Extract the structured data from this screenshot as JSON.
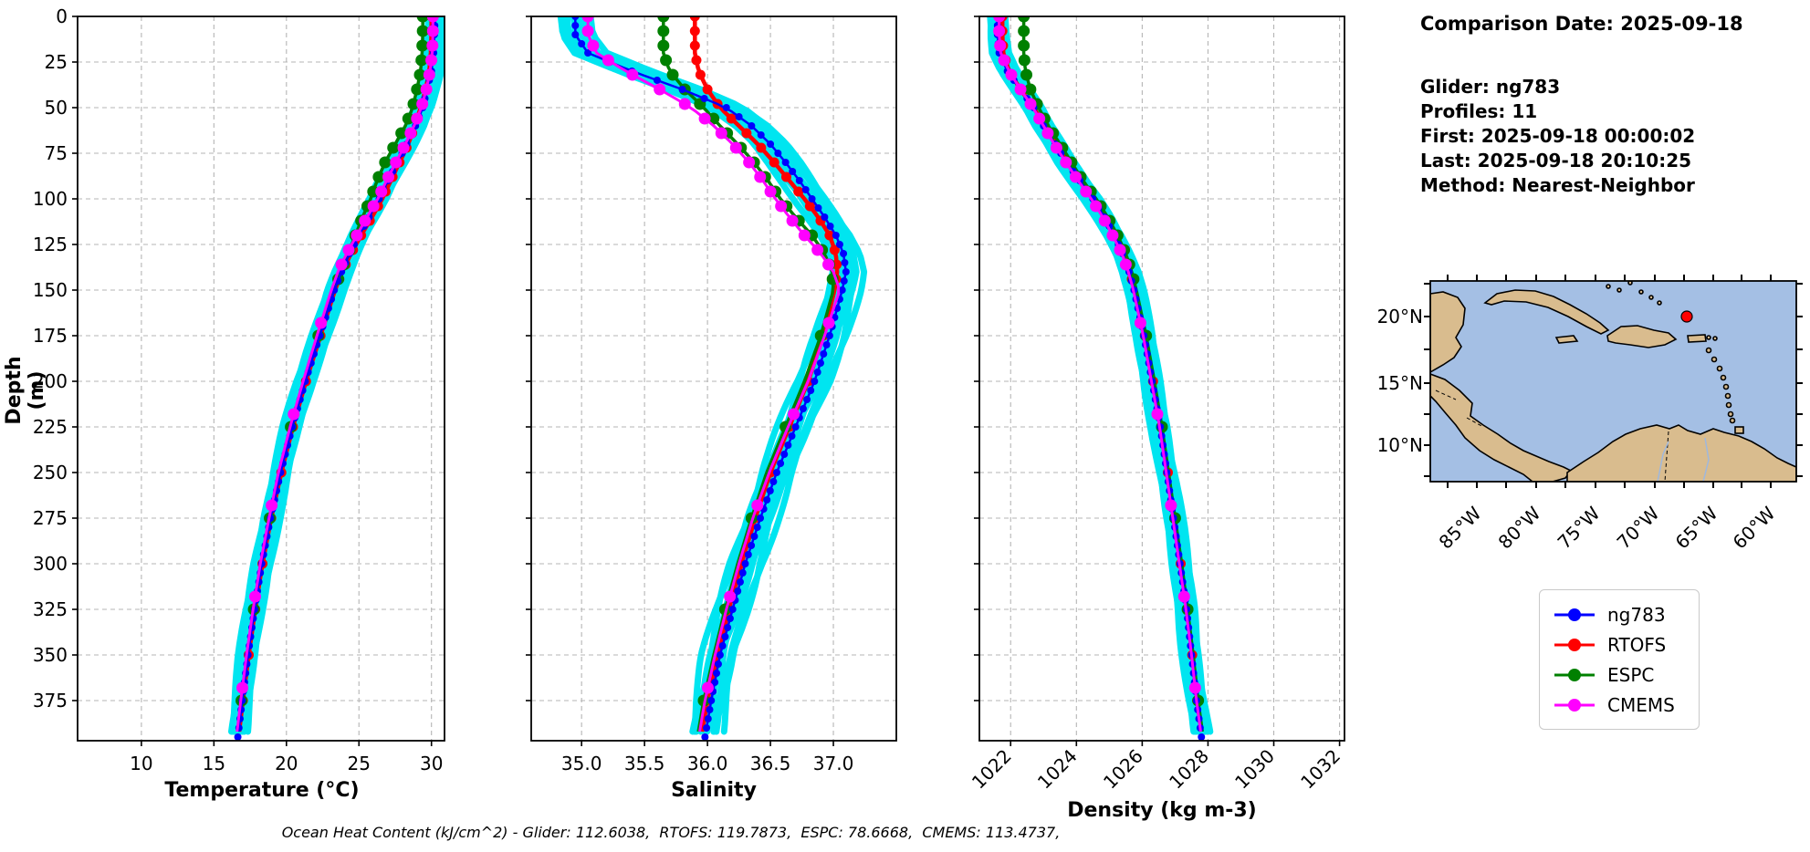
{
  "info_panel": {
    "title": "Comparison Date: 2025-09-18",
    "glider": "Glider: ng783",
    "profiles": "Profiles: 11",
    "first": "First: 2025-09-18 00:00:02",
    "last": "Last: 2025-09-18 20:10:25",
    "method": "Method: Nearest-Neighbor"
  },
  "caption": "Ocean Heat Content (kJ/cm^2) - Glider: 112.6038,  RTOFS: 119.7873,  ESPC: 78.6668,  CMEMS: 113.4737,",
  "legend": {
    "position": "lower-right",
    "items": [
      {
        "label": "ng783",
        "color": "#0000ff"
      },
      {
        "label": "RTOFS",
        "color": "#ff0000"
      },
      {
        "label": "ESPC",
        "color": "#008000"
      },
      {
        "label": "CMEMS",
        "color": "#ff00ff"
      }
    ]
  },
  "colors": {
    "raw_profiles": "#00e5f0",
    "grid": "#b5b5b5",
    "map_ocean": "#a4bfe4",
    "map_land": "#d9bc8e",
    "map_marker": "#ff0000"
  },
  "map": {
    "lat_ticks": [
      "20°N",
      "15°N",
      "10°N"
    ],
    "lon_ticks": [
      "85°W",
      "80°W",
      "75°W",
      "70°W",
      "65°W",
      "60°W"
    ]
  },
  "chart_data": [
    {
      "type": "line",
      "xlabel": "Temperature (°C)",
      "ylabel": "Depth (m)",
      "xlim": [
        5.6,
        30.9
      ],
      "ylim": [
        0,
        397
      ],
      "y_inverted": true,
      "grid": true,
      "x_ticks": [
        10,
        15,
        20,
        25,
        30
      ],
      "x_tick_labels": [
        "10",
        "15",
        "20",
        "25",
        "30"
      ],
      "x_tick_rotation": 0,
      "y_ticks": [
        0,
        25,
        50,
        75,
        100,
        125,
        150,
        175,
        200,
        225,
        250,
        275,
        300,
        325,
        350,
        375
      ],
      "show_y_tick_labels": true,
      "depths": [
        0,
        10,
        20,
        30,
        40,
        50,
        60,
        70,
        80,
        90,
        100,
        110,
        120,
        130,
        140,
        150,
        175,
        200,
        225,
        250,
        275,
        300,
        325,
        350,
        375,
        395
      ],
      "series": [
        {
          "name": "ng783",
          "color": "#0000ff",
          "has_raw_band": true,
          "values": [
            30.25,
            30.2,
            30.15,
            30.0,
            29.7,
            29.4,
            28.9,
            28.3,
            27.65,
            27.0,
            26.4,
            25.7,
            25.0,
            24.35,
            23.8,
            23.3,
            22.3,
            21.3,
            20.4,
            19.6,
            18.9,
            18.3,
            17.8,
            17.35,
            16.95,
            16.65
          ]
        },
        {
          "name": "RTOFS",
          "color": "#ff0000",
          "has_raw_band": false,
          "values": [
            30.0,
            30.0,
            29.95,
            29.85,
            29.6,
            29.25,
            28.85,
            28.4,
            27.8,
            27.2,
            26.6,
            25.9,
            25.15,
            24.45,
            23.85,
            23.35,
            22.35,
            21.35,
            20.45,
            19.65,
            18.95,
            18.35,
            17.85,
            17.4,
            17.0,
            16.7
          ]
        },
        {
          "name": "ESPC",
          "color": "#008000",
          "has_raw_band": false,
          "values": [
            29.4,
            29.4,
            29.35,
            29.25,
            29.0,
            28.7,
            28.2,
            27.5,
            26.8,
            26.25,
            25.8,
            25.25,
            24.75,
            24.25,
            23.75,
            23.3,
            22.2,
            21.2,
            20.3,
            19.5,
            18.85,
            18.25,
            17.75,
            17.3,
            16.9,
            16.6
          ]
        },
        {
          "name": "CMEMS",
          "color": "#ff00ff",
          "has_raw_band": false,
          "values": [
            30.1,
            30.1,
            30.05,
            29.9,
            29.65,
            29.3,
            28.8,
            28.2,
            27.55,
            26.9,
            26.3,
            25.55,
            24.85,
            24.15,
            23.55,
            23.1,
            22.1,
            21.15,
            20.25,
            19.45,
            18.8,
            18.2,
            17.7,
            17.25,
            16.85,
            16.55
          ]
        }
      ]
    },
    {
      "type": "line",
      "xlabel": "Salinity",
      "ylabel": "",
      "xlim": [
        34.6,
        37.5
      ],
      "ylim": [
        0,
        397
      ],
      "y_inverted": true,
      "grid": true,
      "x_ticks": [
        35.0,
        35.5,
        36.0,
        36.5,
        37.0
      ],
      "x_tick_labels": [
        "35.0",
        "35.5",
        "36.0",
        "36.5",
        "37.0"
      ],
      "x_tick_rotation": 0,
      "y_ticks": [
        0,
        25,
        50,
        75,
        100,
        125,
        150,
        175,
        200,
        225,
        250,
        275,
        300,
        325,
        350,
        375
      ],
      "show_y_tick_labels": false,
      "depths": [
        0,
        10,
        20,
        30,
        40,
        50,
        60,
        70,
        80,
        90,
        100,
        110,
        120,
        130,
        140,
        150,
        175,
        200,
        225,
        250,
        275,
        300,
        325,
        350,
        375,
        395
      ],
      "series": [
        {
          "name": "ng783",
          "color": "#0000ff",
          "has_raw_band": true,
          "values": [
            34.95,
            34.95,
            35.05,
            35.4,
            35.8,
            36.15,
            36.35,
            36.5,
            36.62,
            36.73,
            36.83,
            36.93,
            37.02,
            37.08,
            37.1,
            37.07,
            36.97,
            36.85,
            36.7,
            36.55,
            36.42,
            36.3,
            36.2,
            36.1,
            36.03,
            35.98
          ]
        },
        {
          "name": "RTOFS",
          "color": "#ff0000",
          "has_raw_band": false,
          "values": [
            35.9,
            35.9,
            35.9,
            35.93,
            36.0,
            36.1,
            36.25,
            36.4,
            36.53,
            36.65,
            36.77,
            36.88,
            36.97,
            37.02,
            37.03,
            37.01,
            36.92,
            36.8,
            36.65,
            36.5,
            36.38,
            36.27,
            36.17,
            36.08,
            36.0,
            35.95
          ]
        },
        {
          "name": "ESPC",
          "color": "#008000",
          "has_raw_band": false,
          "values": [
            35.65,
            35.65,
            35.65,
            35.7,
            35.82,
            35.97,
            36.1,
            36.24,
            36.37,
            36.48,
            36.58,
            36.7,
            36.83,
            36.93,
            36.99,
            37.0,
            36.9,
            36.77,
            36.62,
            36.47,
            36.35,
            36.24,
            36.14,
            36.05,
            35.97,
            35.92
          ]
        },
        {
          "name": "CMEMS",
          "color": "#ff00ff",
          "has_raw_band": false,
          "values": [
            35.05,
            35.05,
            35.12,
            35.35,
            35.62,
            35.87,
            36.05,
            36.2,
            36.33,
            36.44,
            36.54,
            36.65,
            36.77,
            36.9,
            37.0,
            37.05,
            36.93,
            36.8,
            36.64,
            36.49,
            36.36,
            36.25,
            36.15,
            36.06,
            35.98,
            35.93
          ]
        }
      ]
    },
    {
      "type": "line",
      "xlabel": "Density (kg m-3)",
      "ylabel": "",
      "xlim": [
        1021.05,
        1032.15
      ],
      "ylim": [
        0,
        397
      ],
      "y_inverted": true,
      "grid": true,
      "x_ticks": [
        1022,
        1024,
        1026,
        1028,
        1030,
        1032
      ],
      "x_tick_labels": [
        "1022",
        "1024",
        "1026",
        "1028",
        "1030",
        "1032"
      ],
      "x_tick_rotation": 45,
      "y_ticks": [
        0,
        25,
        50,
        75,
        100,
        125,
        150,
        175,
        200,
        225,
        250,
        275,
        300,
        325,
        350,
        375
      ],
      "show_y_tick_labels": false,
      "depths": [
        0,
        10,
        20,
        30,
        40,
        50,
        60,
        70,
        80,
        90,
        100,
        110,
        120,
        130,
        140,
        150,
        175,
        200,
        225,
        250,
        275,
        300,
        325,
        350,
        375,
        395
      ],
      "series": [
        {
          "name": "ng783",
          "color": "#0000ff",
          "has_raw_band": true,
          "values": [
            1021.6,
            1021.6,
            1021.65,
            1021.9,
            1022.3,
            1022.7,
            1023.0,
            1023.35,
            1023.7,
            1024.1,
            1024.5,
            1024.85,
            1025.15,
            1025.4,
            1025.6,
            1025.75,
            1026.05,
            1026.3,
            1026.55,
            1026.75,
            1026.95,
            1027.15,
            1027.35,
            1027.5,
            1027.65,
            1027.8
          ]
        },
        {
          "name": "RTOFS",
          "color": "#ff0000",
          "has_raw_band": false,
          "values": [
            1021.75,
            1021.75,
            1021.78,
            1021.95,
            1022.3,
            1022.7,
            1023.05,
            1023.4,
            1023.75,
            1024.15,
            1024.55,
            1024.9,
            1025.2,
            1025.45,
            1025.62,
            1025.78,
            1026.08,
            1026.33,
            1026.58,
            1026.78,
            1026.98,
            1027.17,
            1027.36,
            1027.52,
            1027.67,
            1027.82
          ]
        },
        {
          "name": "ESPC",
          "color": "#008000",
          "has_raw_band": false,
          "values": [
            1022.4,
            1022.4,
            1022.4,
            1022.45,
            1022.6,
            1022.85,
            1023.15,
            1023.5,
            1023.85,
            1024.2,
            1024.6,
            1024.95,
            1025.25,
            1025.5,
            1025.68,
            1025.82,
            1026.12,
            1026.37,
            1026.6,
            1026.8,
            1027.0,
            1027.2,
            1027.38,
            1027.55,
            1027.7,
            1027.85
          ]
        },
        {
          "name": "CMEMS",
          "color": "#ff00ff",
          "has_raw_band": false,
          "values": [
            1021.65,
            1021.65,
            1021.7,
            1021.95,
            1022.3,
            1022.68,
            1023.0,
            1023.32,
            1023.68,
            1024.05,
            1024.45,
            1024.8,
            1025.1,
            1025.38,
            1025.58,
            1025.73,
            1026.03,
            1026.28,
            1026.53,
            1026.73,
            1026.93,
            1027.13,
            1027.33,
            1027.5,
            1027.65,
            1027.8
          ]
        }
      ]
    }
  ]
}
